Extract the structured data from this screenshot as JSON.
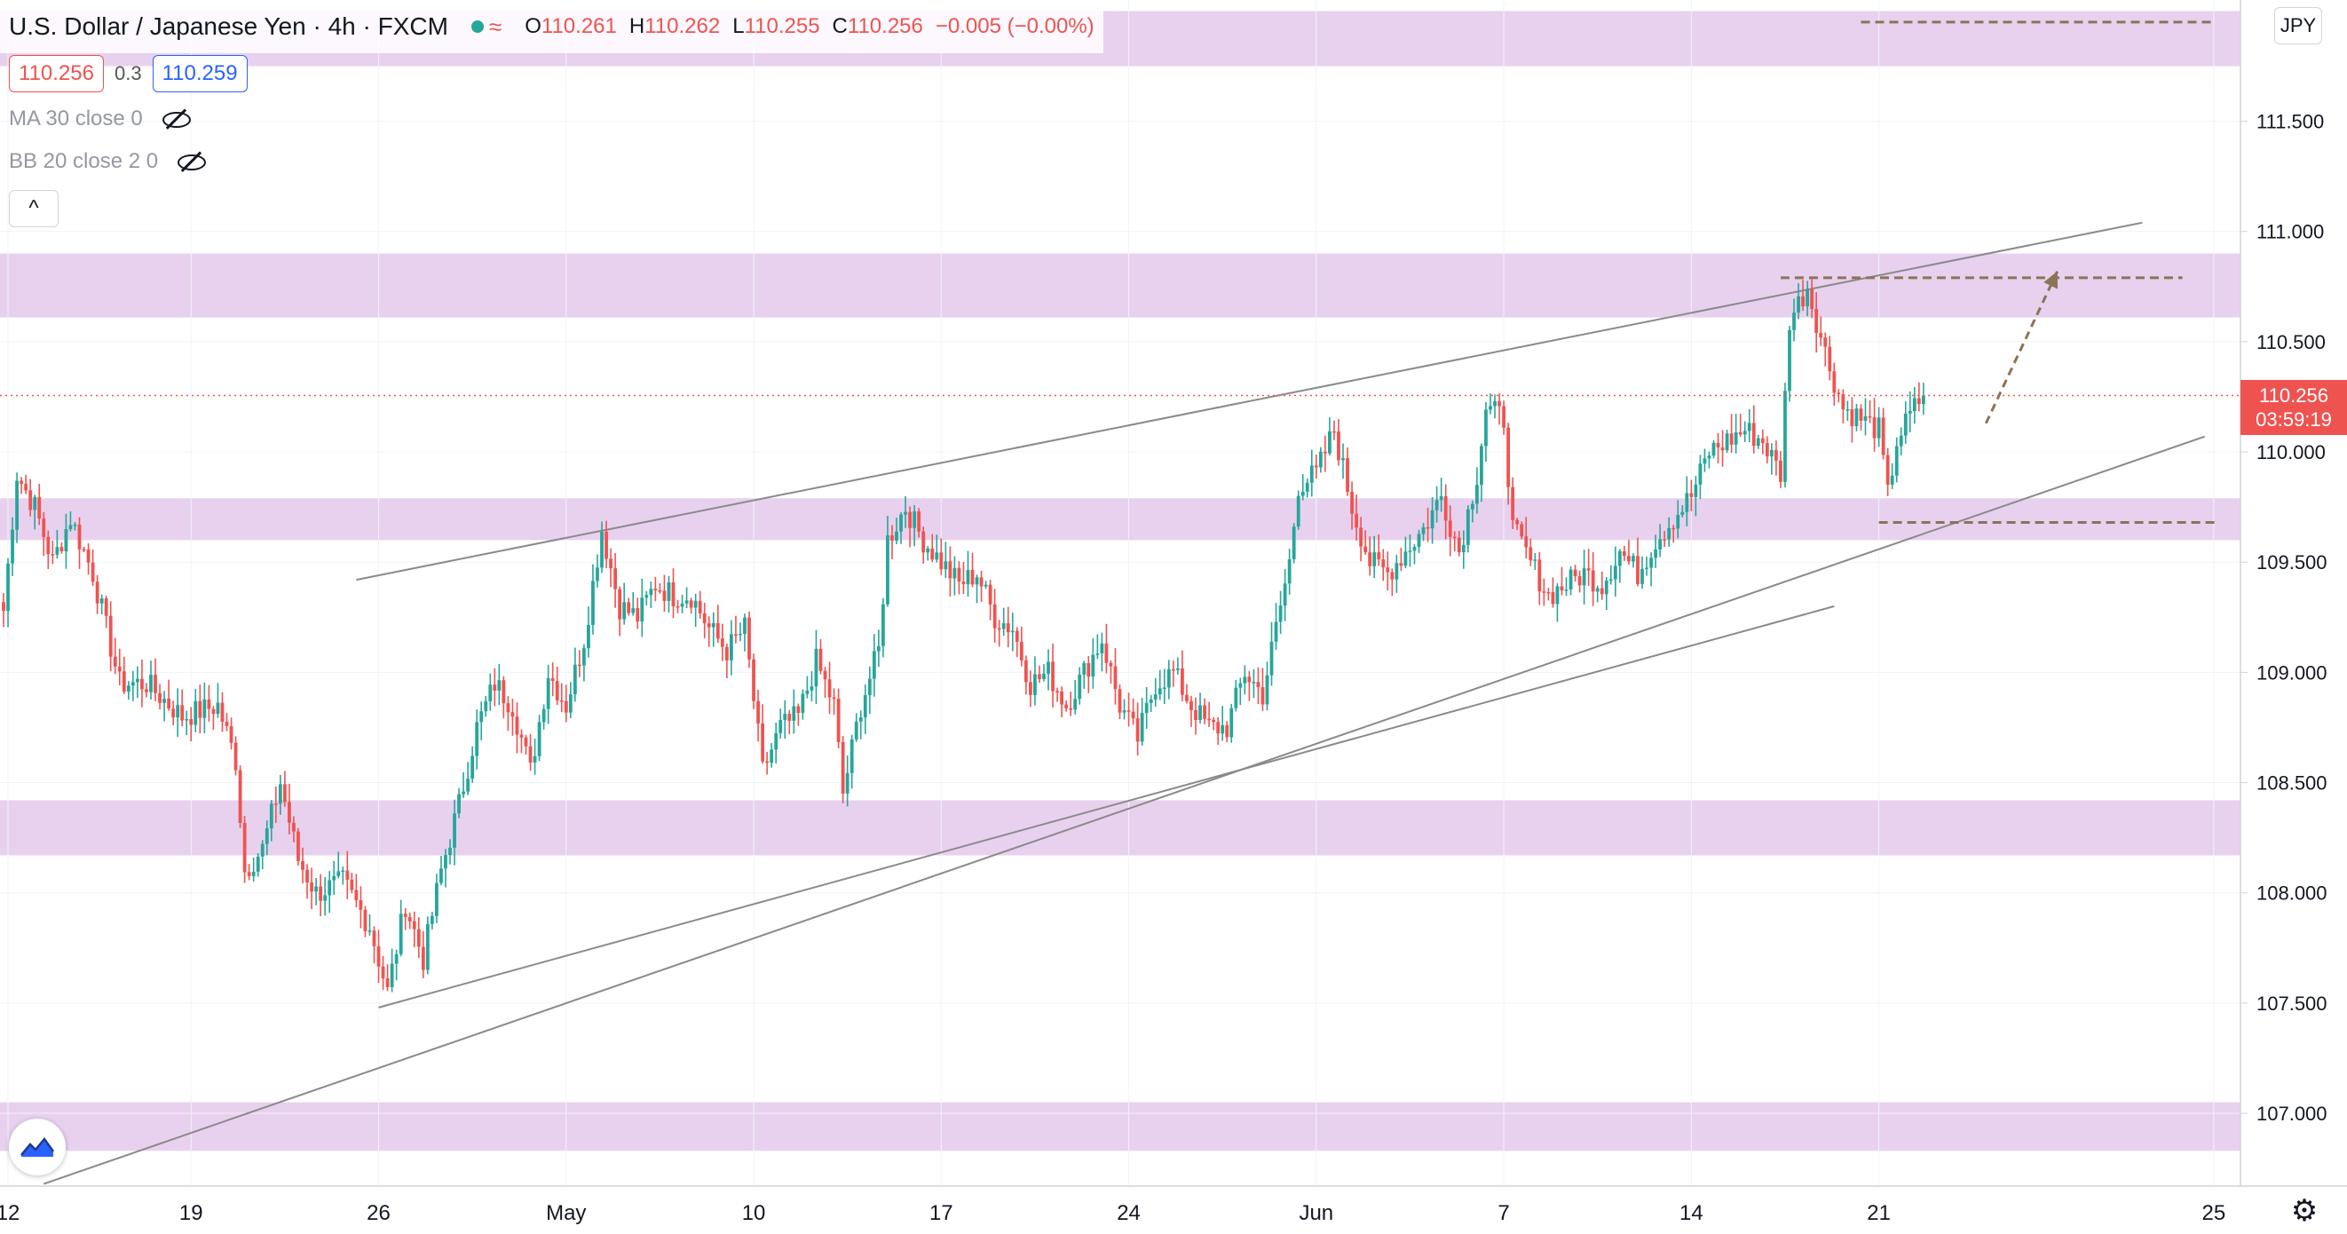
{
  "header": {
    "title": "U.S. Dollar / Japanese Yen",
    "interval": "4h",
    "source": "FXCM",
    "ohlc": {
      "o_label": "O",
      "o": "110.261",
      "h_label": "H",
      "h": "110.262",
      "l_label": "L",
      "l": "110.255",
      "c_label": "C",
      "c": "110.256",
      "change": "−0.005 (−0.00%)"
    }
  },
  "trade": {
    "sell": "110.256",
    "spread": "0.3",
    "buy": "110.259"
  },
  "indicators": [
    {
      "label": "MA 30 close 0",
      "icon": "eye-off-icon"
    },
    {
      "label": "BB 20 close 2 0",
      "icon": "eye-off-icon"
    }
  ],
  "collapse_glyph": "^",
  "currency": "JPY",
  "last_price": {
    "price": "110.256",
    "countdown": "03:59:19"
  },
  "colors": {
    "up": "#26a69a",
    "down": "#ef5350",
    "zone": "#e8d1ee",
    "trendline": "#8a8a8a",
    "dashed": "#8b7355",
    "accent": "#2962ff"
  },
  "chart_data": {
    "type": "candlestick",
    "symbol": "USDJPY",
    "timeframe": "4h",
    "ylim": [
      106.67,
      112.05
    ],
    "y_ticks": [
      "107.000",
      "107.500",
      "108.000",
      "108.500",
      "109.000",
      "109.500",
      "110.000",
      "110.500",
      "111.000",
      "111.500"
    ],
    "x_ticks": [
      "12",
      "19",
      "26",
      "May",
      "10",
      "17",
      "24",
      "Jun",
      "7",
      "14",
      "21",
      "25"
    ],
    "x_tick_index": [
      1,
      42,
      84,
      126,
      168,
      210,
      252,
      294,
      336,
      378,
      420,
      495
    ],
    "total_bars": 495,
    "anchors": [
      [
        0,
        109.28
      ],
      [
        3,
        109.9
      ],
      [
        7,
        109.75
      ],
      [
        11,
        109.5
      ],
      [
        15,
        109.7
      ],
      [
        20,
        109.45
      ],
      [
        26,
        108.95
      ],
      [
        32,
        108.95
      ],
      [
        40,
        108.8
      ],
      [
        48,
        108.85
      ],
      [
        52,
        108.6
      ],
      [
        54,
        108.1
      ],
      [
        58,
        108.2
      ],
      [
        62,
        108.5
      ],
      [
        66,
        108.15
      ],
      [
        70,
        108.0
      ],
      [
        76,
        108.05
      ],
      [
        82,
        107.85
      ],
      [
        86,
        107.55
      ],
      [
        90,
        107.95
      ],
      [
        94,
        107.7
      ],
      [
        98,
        108.1
      ],
      [
        102,
        108.4
      ],
      [
        106,
        108.75
      ],
      [
        110,
        108.95
      ],
      [
        114,
        108.85
      ],
      [
        118,
        108.55
      ],
      [
        122,
        109.0
      ],
      [
        126,
        108.85
      ],
      [
        130,
        109.15
      ],
      [
        134,
        109.65
      ],
      [
        138,
        109.3
      ],
      [
        142,
        109.25
      ],
      [
        146,
        109.4
      ],
      [
        150,
        109.35
      ],
      [
        154,
        109.35
      ],
      [
        158,
        109.2
      ],
      [
        162,
        109.1
      ],
      [
        166,
        109.2
      ],
      [
        170,
        108.55
      ],
      [
        174,
        108.75
      ],
      [
        178,
        108.8
      ],
      [
        182,
        109.05
      ],
      [
        186,
        108.85
      ],
      [
        188,
        108.45
      ],
      [
        192,
        108.85
      ],
      [
        196,
        109.1
      ],
      [
        198,
        109.6
      ],
      [
        202,
        109.75
      ],
      [
        206,
        109.6
      ],
      [
        210,
        109.5
      ],
      [
        214,
        109.4
      ],
      [
        218,
        109.45
      ],
      [
        222,
        109.25
      ],
      [
        226,
        109.2
      ],
      [
        230,
        108.95
      ],
      [
        234,
        109.0
      ],
      [
        238,
        108.85
      ],
      [
        242,
        109.0
      ],
      [
        246,
        109.15
      ],
      [
        250,
        108.85
      ],
      [
        254,
        108.7
      ],
      [
        258,
        108.95
      ],
      [
        262,
        109.0
      ],
      [
        266,
        108.85
      ],
      [
        270,
        108.75
      ],
      [
        274,
        108.75
      ],
      [
        278,
        109.0
      ],
      [
        282,
        108.9
      ],
      [
        286,
        109.3
      ],
      [
        288,
        109.5
      ],
      [
        290,
        109.85
      ],
      [
        294,
        109.9
      ],
      [
        298,
        110.1
      ],
      [
        302,
        109.75
      ],
      [
        306,
        109.5
      ],
      [
        310,
        109.45
      ],
      [
        314,
        109.55
      ],
      [
        318,
        109.65
      ],
      [
        322,
        109.8
      ],
      [
        326,
        109.55
      ],
      [
        330,
        109.9
      ],
      [
        332,
        110.2
      ],
      [
        336,
        110.15
      ],
      [
        338,
        109.65
      ],
      [
        342,
        109.5
      ],
      [
        346,
        109.35
      ],
      [
        350,
        109.4
      ],
      [
        354,
        109.45
      ],
      [
        358,
        109.4
      ],
      [
        362,
        109.55
      ],
      [
        366,
        109.45
      ],
      [
        370,
        109.6
      ],
      [
        374,
        109.7
      ],
      [
        378,
        109.8
      ],
      [
        382,
        110.0
      ],
      [
        386,
        110.05
      ],
      [
        390,
        110.1
      ],
      [
        394,
        110.05
      ],
      [
        398,
        109.9
      ],
      [
        400,
        110.6
      ],
      [
        404,
        110.75
      ],
      [
        408,
        110.45
      ],
      [
        412,
        110.2
      ],
      [
        416,
        110.15
      ],
      [
        420,
        110.1
      ],
      [
        422,
        109.8
      ],
      [
        424,
        110.05
      ],
      [
        428,
        110.2
      ],
      [
        430,
        110.256
      ]
    ],
    "resistance_zones": [
      [
        111.75,
        112.0
      ],
      [
        110.61,
        110.9
      ],
      [
        109.6,
        109.79
      ],
      [
        108.17,
        108.42
      ],
      [
        106.83,
        107.05
      ]
    ],
    "dashed_levels": [
      {
        "price": 111.95,
        "from_bar": 416,
        "to_bar": 495
      },
      {
        "price": 110.79,
        "from_bar": 398,
        "to_bar": 488
      },
      {
        "price": 109.68,
        "from_bar": 420,
        "to_bar": 496
      }
    ],
    "trendlines": [
      {
        "from": [
          79,
          109.42
        ],
        "to": [
          479,
          111.04
        ]
      },
      {
        "from": [
          84,
          107.48
        ],
        "to": [
          410,
          109.3
        ]
      },
      {
        "from": [
          9,
          106.68
        ],
        "to": [
          493,
          110.07
        ]
      }
    ],
    "projection_arrow": {
      "from": [
        444,
        110.13
      ],
      "to": [
        460,
        110.82
      ]
    },
    "last_price_value": 110.256
  }
}
